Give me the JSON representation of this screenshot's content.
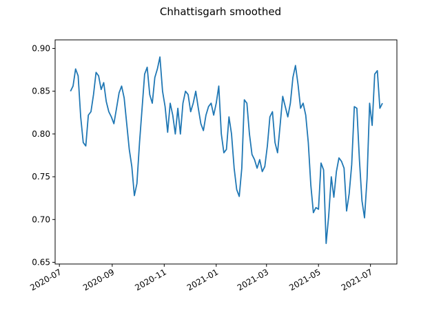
{
  "chart_data": {
    "type": "line",
    "title": "Chhattisgarh smoothed",
    "xlabel": "",
    "ylabel": "",
    "grid": false,
    "line_color": "#1f77b4",
    "xlim": [
      "2020-06-26",
      "2021-08-01"
    ],
    "ylim": [
      0.648,
      0.91
    ],
    "x_ticks": [
      "2020-07",
      "2020-09",
      "2020-11",
      "2021-01",
      "2021-03",
      "2021-05",
      "2021-07"
    ],
    "y_ticks": [
      "0.65",
      "0.70",
      "0.75",
      "0.80",
      "0.85",
      "0.90"
    ],
    "series": [
      {
        "x": [
          "2020-07-14",
          "2020-07-17",
          "2020-07-20",
          "2020-07-23",
          "2020-07-26",
          "2020-07-29",
          "2020-08-01",
          "2020-08-04",
          "2020-08-07",
          "2020-08-10",
          "2020-08-13",
          "2020-08-16",
          "2020-08-19",
          "2020-08-22",
          "2020-08-25",
          "2020-08-28",
          "2020-08-31",
          "2020-09-03",
          "2020-09-06",
          "2020-09-09",
          "2020-09-12",
          "2020-09-15",
          "2020-09-18",
          "2020-09-21",
          "2020-09-24",
          "2020-09-27",
          "2020-09-30",
          "2020-10-03",
          "2020-10-06",
          "2020-10-09",
          "2020-10-12",
          "2020-10-15",
          "2020-10-18",
          "2020-10-21",
          "2020-10-24",
          "2020-10-27",
          "2020-10-30",
          "2020-11-02",
          "2020-11-05",
          "2020-11-08",
          "2020-11-11",
          "2020-11-14",
          "2020-11-17",
          "2020-11-20",
          "2020-11-23",
          "2020-11-26",
          "2020-11-29",
          "2020-12-02",
          "2020-12-05",
          "2020-12-08",
          "2020-12-11",
          "2020-12-14",
          "2020-12-17",
          "2020-12-20",
          "2020-12-23",
          "2020-12-26",
          "2020-12-29",
          "2021-01-01",
          "2021-01-04",
          "2021-01-07",
          "2021-01-10",
          "2021-01-13",
          "2021-01-16",
          "2021-01-19",
          "2021-01-22",
          "2021-01-25",
          "2021-01-28",
          "2021-01-31",
          "2021-02-03",
          "2021-02-06",
          "2021-02-09",
          "2021-02-12",
          "2021-02-15",
          "2021-02-18",
          "2021-02-21",
          "2021-02-24",
          "2021-02-27",
          "2021-03-02",
          "2021-03-05",
          "2021-03-08",
          "2021-03-11",
          "2021-03-14",
          "2021-03-17",
          "2021-03-20",
          "2021-03-23",
          "2021-03-26",
          "2021-03-29",
          "2021-04-01",
          "2021-04-04",
          "2021-04-07",
          "2021-04-10",
          "2021-04-13",
          "2021-04-16",
          "2021-04-19",
          "2021-04-22",
          "2021-04-25",
          "2021-04-28",
          "2021-05-01",
          "2021-05-04",
          "2021-05-07",
          "2021-05-10",
          "2021-05-13",
          "2021-05-16",
          "2021-05-19",
          "2021-05-22",
          "2021-05-25",
          "2021-05-28",
          "2021-05-31",
          "2021-06-03",
          "2021-06-06",
          "2021-06-09",
          "2021-06-12",
          "2021-06-15",
          "2021-06-18",
          "2021-06-21",
          "2021-06-24",
          "2021-06-27",
          "2021-06-30",
          "2021-07-03",
          "2021-07-06",
          "2021-07-09",
          "2021-07-12",
          "2021-07-15"
        ],
        "y": [
          0.85,
          0.856,
          0.876,
          0.868,
          0.82,
          0.79,
          0.786,
          0.822,
          0.826,
          0.846,
          0.872,
          0.868,
          0.852,
          0.86,
          0.838,
          0.826,
          0.82,
          0.812,
          0.83,
          0.848,
          0.856,
          0.842,
          0.812,
          0.782,
          0.762,
          0.728,
          0.742,
          0.79,
          0.83,
          0.87,
          0.878,
          0.846,
          0.836,
          0.866,
          0.876,
          0.89,
          0.85,
          0.832,
          0.802,
          0.836,
          0.822,
          0.8,
          0.83,
          0.8,
          0.836,
          0.85,
          0.846,
          0.826,
          0.836,
          0.85,
          0.83,
          0.812,
          0.804,
          0.822,
          0.832,
          0.836,
          0.822,
          0.836,
          0.856,
          0.8,
          0.778,
          0.782,
          0.82,
          0.8,
          0.76,
          0.735,
          0.727,
          0.76,
          0.84,
          0.836,
          0.8,
          0.776,
          0.77,
          0.76,
          0.77,
          0.756,
          0.762,
          0.786,
          0.82,
          0.826,
          0.79,
          0.778,
          0.81,
          0.844,
          0.832,
          0.82,
          0.836,
          0.866,
          0.88,
          0.858,
          0.83,
          0.836,
          0.822,
          0.79,
          0.74,
          0.708,
          0.714,
          0.712,
          0.766,
          0.758,
          0.672,
          0.704,
          0.75,
          0.726,
          0.756,
          0.772,
          0.768,
          0.76,
          0.71,
          0.73,
          0.764,
          0.832,
          0.83,
          0.77,
          0.722,
          0.702,
          0.748,
          0.836,
          0.81,
          0.87,
          0.874,
          0.83,
          0.836
        ]
      }
    ]
  }
}
